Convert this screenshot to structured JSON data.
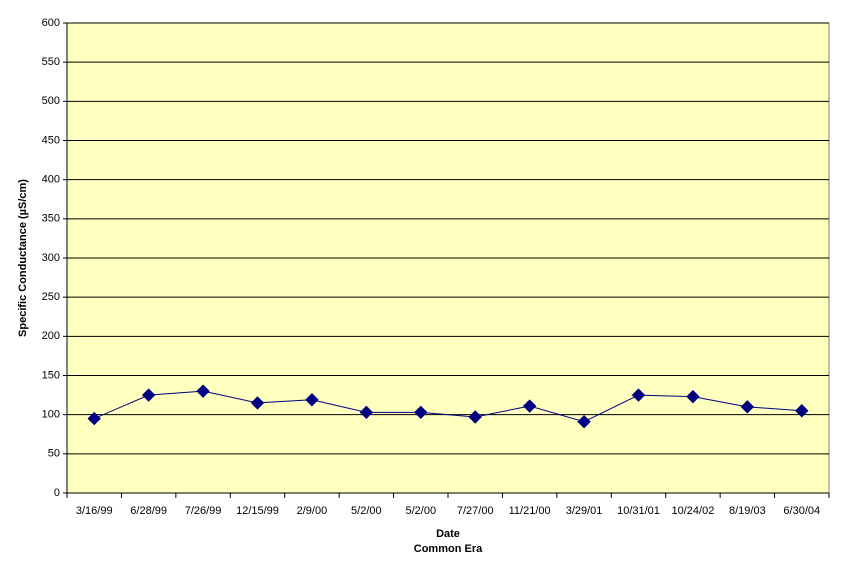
{
  "chart_data": {
    "type": "line",
    "ylabel": "Specific Conductance (µS/cm)",
    "xlabel": [
      "Date",
      "Common Era"
    ],
    "categories": [
      "3/16/99",
      "6/28/99",
      "7/26/99",
      "12/15/99",
      "2/9/00",
      "5/2/00",
      "5/2/00",
      "7/27/00",
      "11/21/00",
      "3/29/01",
      "10/31/01",
      "10/24/02",
      "8/19/03",
      "6/30/04"
    ],
    "series": [
      {
        "name": "Specific Conductance",
        "color": "#000080",
        "values": [
          95,
          125,
          130,
          115,
          119,
          103,
          103,
          97,
          111,
          91,
          125,
          123,
          110,
          105
        ]
      }
    ],
    "ylim": [
      0,
      600
    ],
    "yticks": [
      0,
      50,
      100,
      150,
      200,
      250,
      300,
      350,
      400,
      450,
      500,
      550,
      600
    ],
    "grid": true,
    "background": "#ffffc0"
  }
}
